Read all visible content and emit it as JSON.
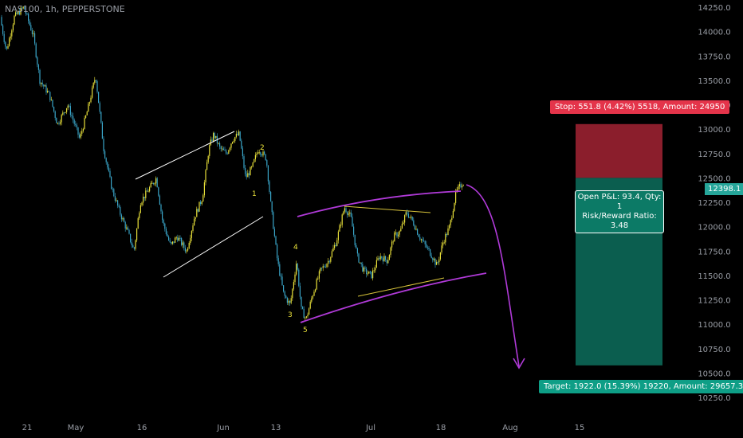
{
  "chart_title": "NAS100, 1h, PEPPERSTONE",
  "chart_data": {
    "type": "candlestick",
    "symbol": "NAS100",
    "timeframe": "1h",
    "broker": "PEPPERSTONE",
    "y_ticks": [
      "14250.0",
      "14000.0",
      "13750.0",
      "13500.0",
      "13250.0",
      "13000.0",
      "12750.0",
      "12500.0",
      "12250.0",
      "12000.0",
      "11750.0",
      "11500.0",
      "11250.0",
      "11000.0",
      "10750.0",
      "10500.0",
      "10250.0"
    ],
    "ylim": [
      10100,
      14300
    ],
    "x_ticks": [
      "21",
      "May",
      "16",
      "Jun",
      "13",
      "Jul",
      "18",
      "Aug",
      "15"
    ],
    "price_path": [
      [
        0,
        14150
      ],
      [
        8,
        13800
      ],
      [
        18,
        14150
      ],
      [
        30,
        14250
      ],
      [
        42,
        13950
      ],
      [
        50,
        13500
      ],
      [
        62,
        13350
      ],
      [
        72,
        13050
      ],
      [
        85,
        13250
      ],
      [
        100,
        12900
      ],
      [
        110,
        13200
      ],
      [
        120,
        13550
      ],
      [
        130,
        12800
      ],
      [
        140,
        12400
      ],
      [
        150,
        12150
      ],
      [
        160,
        11950
      ],
      [
        168,
        11750
      ],
      [
        176,
        12250
      ],
      [
        188,
        12400
      ],
      [
        196,
        12500
      ],
      [
        204,
        12050
      ],
      [
        214,
        11800
      ],
      [
        222,
        11900
      ],
      [
        234,
        11750
      ],
      [
        244,
        12100
      ],
      [
        254,
        12300
      ],
      [
        262,
        12800
      ],
      [
        268,
        12950
      ],
      [
        276,
        12800
      ],
      [
        284,
        12750
      ],
      [
        292,
        12900
      ],
      [
        300,
        12950
      ],
      [
        308,
        12500
      ],
      [
        316,
        12600
      ],
      [
        324,
        12800
      ],
      [
        334,
        12700
      ],
      [
        340,
        12200
      ],
      [
        348,
        11650
      ],
      [
        356,
        11300
      ],
      [
        364,
        11200
      ],
      [
        372,
        11650
      ],
      [
        378,
        11150
      ],
      [
        384,
        11050
      ],
      [
        392,
        11300
      ],
      [
        402,
        11550
      ],
      [
        412,
        11650
      ],
      [
        422,
        11850
      ],
      [
        432,
        12200
      ],
      [
        440,
        12100
      ],
      [
        448,
        11700
      ],
      [
        456,
        11550
      ],
      [
        466,
        11500
      ],
      [
        476,
        11700
      ],
      [
        486,
        11650
      ],
      [
        494,
        11900
      ],
      [
        502,
        11950
      ],
      [
        510,
        12150
      ],
      [
        518,
        12050
      ],
      [
        526,
        11900
      ],
      [
        534,
        11800
      ],
      [
        542,
        11700
      ],
      [
        548,
        11600
      ],
      [
        556,
        11850
      ],
      [
        564,
        12000
      ],
      [
        572,
        12350
      ],
      [
        580,
        12450
      ]
    ],
    "last_price": "12398.1",
    "position": {
      "type": "short",
      "entry": 12500,
      "stop_price": 13051.8,
      "target_price": 10578,
      "stop_label": "Stop: 551.8 (4.42%) 5518, Amount: 24950",
      "target_label": "Target: 1922.0 (15.39%) 19220, Amount: 29657.3",
      "pnl_label": "Open P&L: 93.4, Qty: 1",
      "rr_label": "Risk/Reward Ratio: 3.48"
    },
    "wave_labels": [
      "2",
      "1",
      "4",
      "3",
      "5"
    ],
    "colors": {
      "up_candle": "#e8e03a",
      "down_candle": "#3aa5c8",
      "stop_zone": "#8b1e2c",
      "target_zone": "#0b5e4f",
      "channel_white": "#ffffff",
      "channel_magenta": "#b03ad8",
      "triangle_yellow": "#d8c43a",
      "axis_text": "#9a9ea6",
      "background": "#000000"
    }
  }
}
